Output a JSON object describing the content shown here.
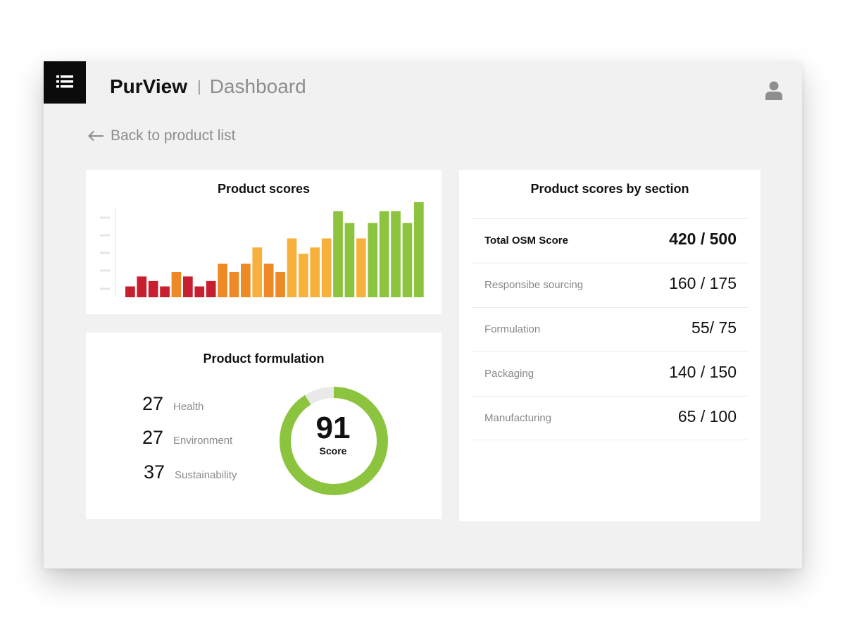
{
  "header": {
    "brand": "PurView",
    "separator": "|",
    "page": "Dashboard"
  },
  "nav": {
    "back_label": "Back to product list"
  },
  "icons": {
    "menu": "list-menu-icon",
    "user": "user-avatar-icon",
    "back": "arrow-left-icon"
  },
  "colors": {
    "red": "#c81e2f",
    "orange": "#ee8a25",
    "yellow": "#f7b03c",
    "green": "#8cc43f",
    "track": "#e9e9e9"
  },
  "product_scores": {
    "title": "Product scores",
    "chart_data": {
      "type": "bar",
      "values": [
        12,
        23,
        18,
        12,
        28,
        23,
        12,
        18,
        37,
        28,
        37,
        55,
        37,
        28,
        65,
        48,
        55,
        65,
        95,
        82,
        65,
        82,
        95,
        95,
        82,
        105
      ],
      "colors": [
        "red",
        "red",
        "red",
        "red",
        "orange",
        "red",
        "red",
        "red",
        "orange",
        "orange",
        "orange",
        "yellow",
        "orange",
        "orange",
        "yellow",
        "yellow",
        "yellow",
        "yellow",
        "green",
        "green",
        "yellow",
        "green",
        "green",
        "green",
        "green",
        "green"
      ]
    }
  },
  "formulation": {
    "title": "Product formulation",
    "stats": [
      {
        "value": "27",
        "label": "Health"
      },
      {
        "value": "27",
        "label": "Environment"
      },
      {
        "value": "37",
        "label": "Sustainability"
      }
    ],
    "score_value": "91",
    "score_label": "Score",
    "score_fraction": 0.91
  },
  "sections": {
    "title": "Product scores by section",
    "total": {
      "label": "Total OSM Score",
      "value": "420 / 500"
    },
    "rows": [
      {
        "label": "Responsibe sourcing",
        "value": "160 / 175"
      },
      {
        "label": "Formulation",
        "value": "55/ 75"
      },
      {
        "label": "Packaging",
        "value": "140 / 150"
      },
      {
        "label": "Manufacturing",
        "value": "65 / 100"
      }
    ]
  }
}
